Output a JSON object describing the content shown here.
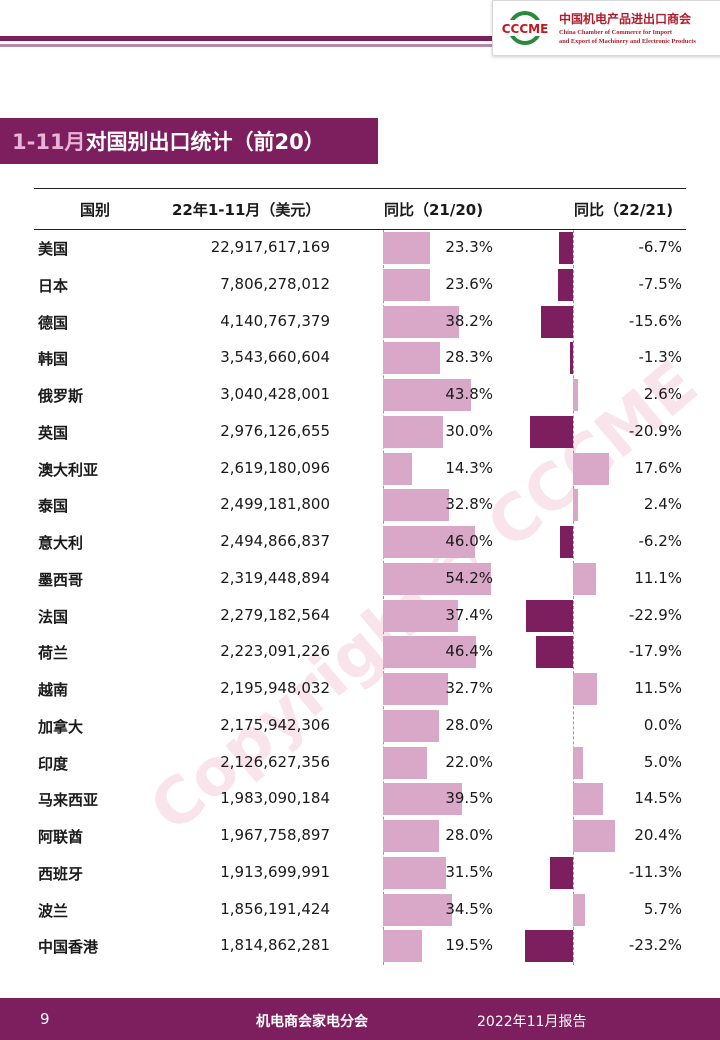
{
  "header": {
    "org_cn": "中国机电产品进出口商会",
    "org_en_line1": "China Chamber of Commerce for Import",
    "org_en_line2": "and Export of Machinery and Electronic Products",
    "logo_text": "CCCME"
  },
  "title": {
    "accent": "1-11月",
    "rest": "对国别出口统计（前20）"
  },
  "table": {
    "headers": [
      "国别",
      "22年1-11月（美元）",
      "同比（21/20)",
      "同比（22/21)"
    ],
    "rows": [
      {
        "country": "美国",
        "value": "22,917,617,169",
        "yoy1": "23.3%",
        "yoy2": "-6.7%",
        "yoy1_num": 23.3,
        "yoy2_num": -6.7
      },
      {
        "country": "日本",
        "value": "7,806,278,012",
        "yoy1": "23.6%",
        "yoy2": "-7.5%",
        "yoy1_num": 23.6,
        "yoy2_num": -7.5
      },
      {
        "country": "德国",
        "value": "4,140,767,379",
        "yoy1": "38.2%",
        "yoy2": "-15.6%",
        "yoy1_num": 38.2,
        "yoy2_num": -15.6
      },
      {
        "country": "韩国",
        "value": "3,543,660,604",
        "yoy1": "28.3%",
        "yoy2": "-1.3%",
        "yoy1_num": 28.3,
        "yoy2_num": -1.3
      },
      {
        "country": "俄罗斯",
        "value": "3,040,428,001",
        "yoy1": "43.8%",
        "yoy2": "2.6%",
        "yoy1_num": 43.8,
        "yoy2_num": 2.6
      },
      {
        "country": "英国",
        "value": "2,976,126,655",
        "yoy1": "30.0%",
        "yoy2": "-20.9%",
        "yoy1_num": 30.0,
        "yoy2_num": -20.9
      },
      {
        "country": "澳大利亚",
        "value": "2,619,180,096",
        "yoy1": "14.3%",
        "yoy2": "17.6%",
        "yoy1_num": 14.3,
        "yoy2_num": 17.6
      },
      {
        "country": "泰国",
        "value": "2,499,181,800",
        "yoy1": "32.8%",
        "yoy2": "2.4%",
        "yoy1_num": 32.8,
        "yoy2_num": 2.4
      },
      {
        "country": "意大利",
        "value": "2,494,866,837",
        "yoy1": "46.0%",
        "yoy2": "-6.2%",
        "yoy1_num": 46.0,
        "yoy2_num": -6.2
      },
      {
        "country": "墨西哥",
        "value": "2,319,448,894",
        "yoy1": "54.2%",
        "yoy2": "11.1%",
        "yoy1_num": 54.2,
        "yoy2_num": 11.1
      },
      {
        "country": "法国",
        "value": "2,279,182,564",
        "yoy1": "37.4%",
        "yoy2": "-22.9%",
        "yoy1_num": 37.4,
        "yoy2_num": -22.9
      },
      {
        "country": "荷兰",
        "value": "2,223,091,226",
        "yoy1": "46.4%",
        "yoy2": "-17.9%",
        "yoy1_num": 46.4,
        "yoy2_num": -17.9
      },
      {
        "country": "越南",
        "value": "2,195,948,032",
        "yoy1": "32.7%",
        "yoy2": "11.5%",
        "yoy1_num": 32.7,
        "yoy2_num": 11.5
      },
      {
        "country": "加拿大",
        "value": "2,175,942,306",
        "yoy1": "28.0%",
        "yoy2": "0.0%",
        "yoy1_num": 28.0,
        "yoy2_num": 0.0
      },
      {
        "country": "印度",
        "value": "2,126,627,356",
        "yoy1": "22.0%",
        "yoy2": "5.0%",
        "yoy1_num": 22.0,
        "yoy2_num": 5.0
      },
      {
        "country": "马来西亚",
        "value": "1,983,090,184",
        "yoy1": "39.5%",
        "yoy2": "14.5%",
        "yoy1_num": 39.5,
        "yoy2_num": 14.5
      },
      {
        "country": "阿联酋",
        "value": "1,967,758,897",
        "yoy1": "28.0%",
        "yoy2": "20.4%",
        "yoy1_num": 28.0,
        "yoy2_num": 20.4
      },
      {
        "country": "西班牙",
        "value": "1,913,699,991",
        "yoy1": "31.5%",
        "yoy2": "-11.3%",
        "yoy1_num": 31.5,
        "yoy2_num": -11.3
      },
      {
        "country": "波兰",
        "value": "1,856,191,424",
        "yoy1": "34.5%",
        "yoy2": "5.7%",
        "yoy1_num": 34.5,
        "yoy2_num": 5.7
      },
      {
        "country": "中国香港",
        "value": "1,814,862,281",
        "yoy1": "19.5%",
        "yoy2": "-23.2%",
        "yoy1_num": 19.5,
        "yoy2_num": -23.2
      }
    ]
  },
  "colors": {
    "brand": "#7d1f5e",
    "bar_light": "#d9a8c8",
    "bar_dark": "#7d1f5e"
  },
  "watermark": "Copyright© CCCME",
  "footer": {
    "page": "9",
    "center": "机电商会家电分会",
    "right": "2022年11月报告"
  }
}
